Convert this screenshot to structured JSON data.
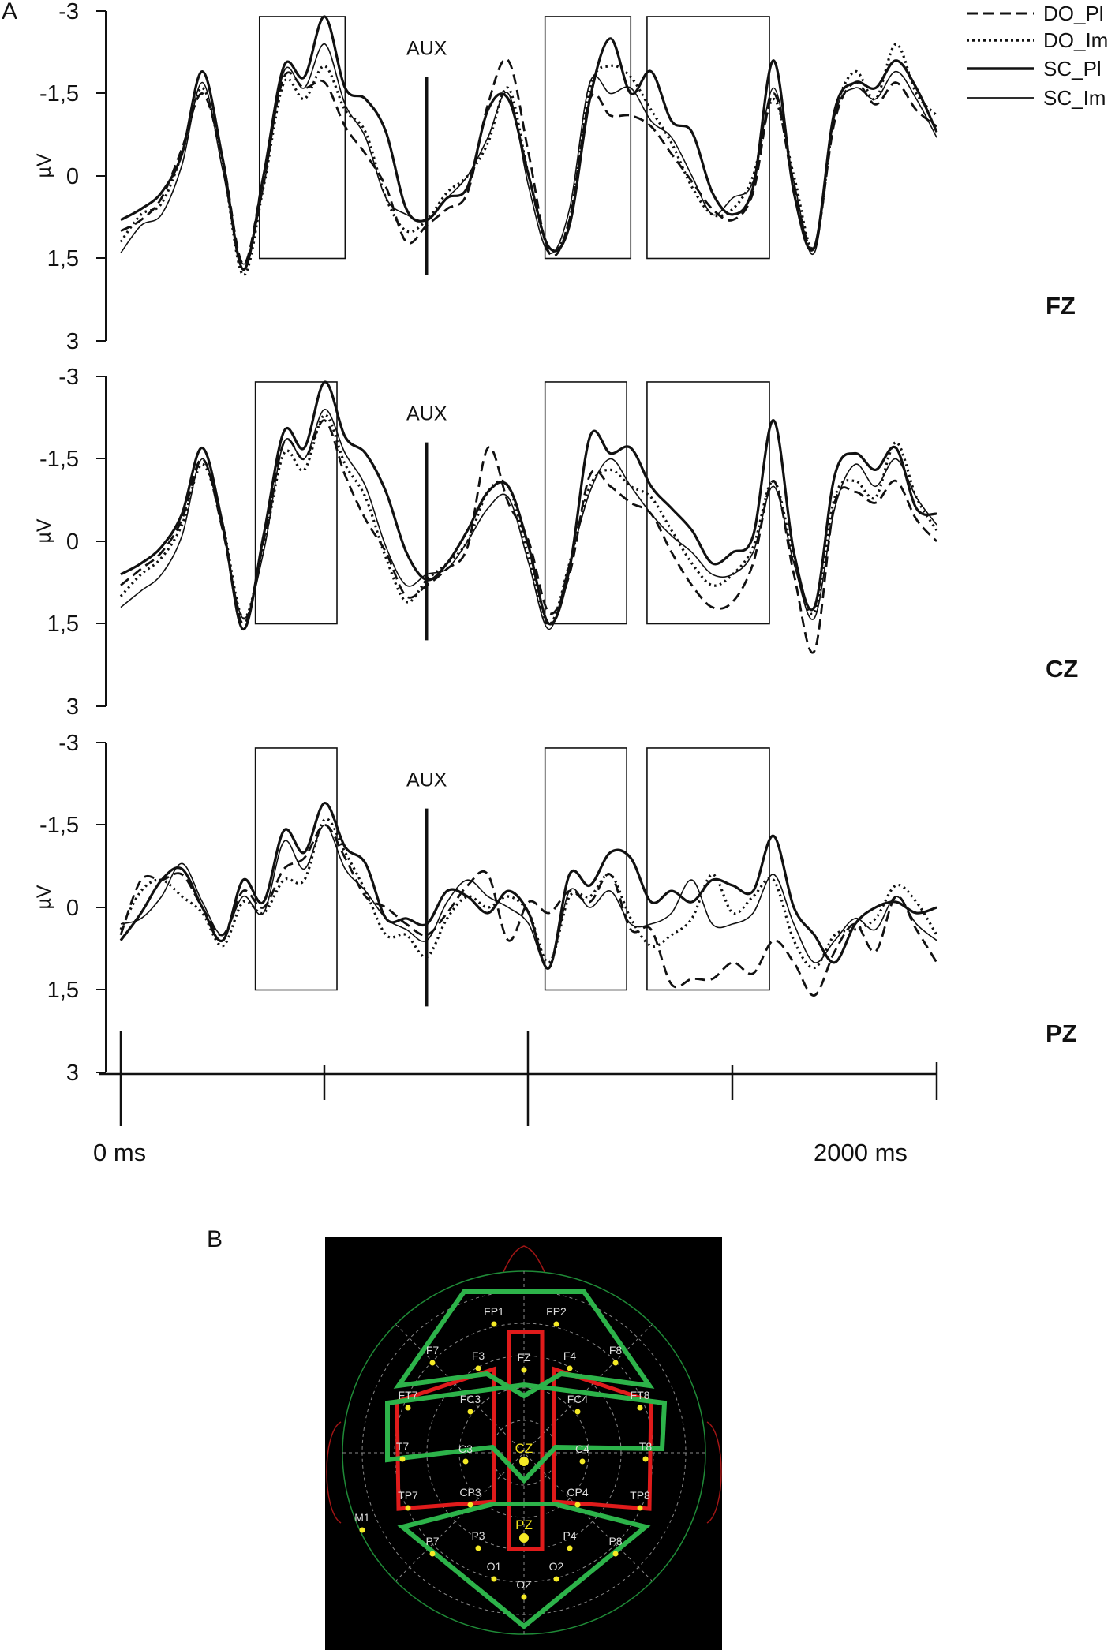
{
  "panel_a_label": "A",
  "panel_b_label": "B",
  "chart_data": [
    {
      "type": "line",
      "electrode": "FZ",
      "ylabel": "µV",
      "yticks": [
        "-3",
        "-1,5",
        "0",
        "1,5",
        "3"
      ],
      "ylim": [
        3,
        -3
      ],
      "y_inverted": true,
      "xlim": [
        0,
        2000
      ],
      "aux_label": "AUX",
      "aux_time_ms": 750,
      "windows_ms": [
        [
          340,
          550
        ],
        [
          1040,
          1250
        ],
        [
          1290,
          1590
        ]
      ],
      "x_ms": [
        0,
        50,
        100,
        150,
        200,
        250,
        300,
        350,
        400,
        450,
        500,
        550,
        600,
        650,
        700,
        750,
        800,
        850,
        900,
        950,
        1000,
        1050,
        1100,
        1150,
        1200,
        1250,
        1300,
        1350,
        1400,
        1450,
        1500,
        1550,
        1600,
        1650,
        1700,
        1750,
        1800,
        1850,
        1900,
        1950,
        2000
      ],
      "series": [
        {
          "name": "DO_Pl",
          "values": [
            1.0,
            0.8,
            0.4,
            -0.5,
            -1.5,
            -0.3,
            1.6,
            0.0,
            -1.8,
            -1.6,
            -1.7,
            -0.9,
            -0.4,
            0.2,
            1.2,
            0.9,
            0.6,
            0.3,
            -1.3,
            -2.1,
            -0.4,
            1.4,
            0.8,
            -1.4,
            -1.1,
            -1.1,
            -0.9,
            -0.4,
            0.1,
            0.6,
            0.8,
            0.3,
            -1.5,
            0.2,
            1.3,
            -1.0,
            -1.7,
            -1.3,
            -1.7,
            -1.2,
            -0.9
          ]
        },
        {
          "name": "DO_Im",
          "values": [
            1.2,
            0.7,
            0.5,
            -0.4,
            -1.6,
            -0.2,
            1.8,
            0.2,
            -1.7,
            -1.4,
            -2.0,
            -1.2,
            -0.8,
            0.4,
            1.0,
            0.8,
            0.3,
            0.0,
            -0.6,
            -1.6,
            0.0,
            1.3,
            0.8,
            -1.6,
            -2.0,
            -1.8,
            -1.2,
            -0.6,
            0.2,
            0.7,
            0.6,
            0.0,
            -1.4,
            0.0,
            1.3,
            -1.1,
            -1.9,
            -1.4,
            -2.4,
            -1.5,
            -1.1
          ]
        },
        {
          "name": "SC_Pl",
          "values": [
            0.8,
            0.6,
            0.3,
            -0.4,
            -1.9,
            -0.3,
            1.7,
            0.0,
            -2.0,
            -1.8,
            -2.9,
            -1.6,
            -1.4,
            -0.8,
            0.6,
            0.8,
            0.4,
            0.2,
            -1.2,
            -1.4,
            0.0,
            1.3,
            0.9,
            -1.4,
            -2.5,
            -1.5,
            -1.9,
            -1.0,
            -0.8,
            0.3,
            0.7,
            0.2,
            -2.1,
            0.3,
            1.3,
            -1.2,
            -1.7,
            -1.6,
            -2.1,
            -1.6,
            -0.8
          ]
        },
        {
          "name": "SC_Im",
          "values": [
            1.4,
            0.9,
            0.7,
            -0.2,
            -1.7,
            -0.1,
            1.6,
            0.2,
            -1.9,
            -1.6,
            -2.4,
            -1.3,
            -0.7,
            0.4,
            0.7,
            0.8,
            0.4,
            0.0,
            -0.7,
            -1.5,
            0.2,
            1.4,
            0.6,
            -1.7,
            -1.5,
            -1.6,
            -1.0,
            -0.7,
            0.0,
            0.7,
            0.4,
            0.1,
            -1.6,
            0.1,
            1.4,
            -1.1,
            -1.6,
            -1.4,
            -1.9,
            -1.4,
            -0.7
          ]
        }
      ]
    },
    {
      "type": "line",
      "electrode": "CZ",
      "ylabel": "µV",
      "yticks": [
        "-3",
        "-1,5",
        "0",
        "1,5",
        "3"
      ],
      "ylim": [
        3,
        -3
      ],
      "y_inverted": true,
      "xlim": [
        0,
        2000
      ],
      "aux_label": "AUX",
      "aux_time_ms": 750,
      "windows_ms": [
        [
          330,
          530
        ],
        [
          1040,
          1240
        ],
        [
          1290,
          1590
        ]
      ],
      "x_ms": [
        0,
        50,
        100,
        150,
        200,
        250,
        300,
        350,
        400,
        450,
        500,
        550,
        600,
        650,
        700,
        750,
        800,
        850,
        900,
        950,
        1000,
        1050,
        1100,
        1150,
        1200,
        1250,
        1300,
        1350,
        1400,
        1450,
        1500,
        1550,
        1600,
        1650,
        1700,
        1750,
        1800,
        1850,
        1900,
        1950,
        2000
      ],
      "series": [
        {
          "name": "DO_Pl",
          "values": [
            0.8,
            0.5,
            0.2,
            -0.4,
            -1.5,
            -0.2,
            1.5,
            0.0,
            -1.8,
            -1.5,
            -2.2,
            -1.2,
            -0.4,
            0.2,
            1.0,
            0.8,
            0.5,
            0.1,
            -1.7,
            -0.7,
            0.0,
            1.3,
            0.6,
            -1.2,
            -1.0,
            -0.7,
            -0.5,
            0.2,
            0.8,
            1.2,
            1.1,
            0.4,
            -1.1,
            0.6,
            2.0,
            -0.7,
            -0.9,
            -0.7,
            -1.1,
            -0.4,
            0.0
          ]
        },
        {
          "name": "DO_Im",
          "values": [
            1.0,
            0.6,
            0.3,
            -0.3,
            -1.4,
            -0.3,
            1.4,
            0.1,
            -1.6,
            -1.3,
            -2.3,
            -1.4,
            -0.8,
            0.3,
            1.1,
            0.7,
            0.4,
            0.0,
            -0.9,
            -1.0,
            0.3,
            1.5,
            0.4,
            -1.0,
            -1.3,
            -1.0,
            -0.8,
            -0.2,
            0.4,
            0.8,
            0.6,
            0.1,
            -1.1,
            0.3,
            1.3,
            -0.8,
            -1.1,
            -0.8,
            -1.8,
            -0.8,
            -0.2
          ]
        },
        {
          "name": "SC_Pl",
          "values": [
            0.6,
            0.4,
            0.1,
            -0.5,
            -1.7,
            -0.3,
            1.6,
            -0.1,
            -2.0,
            -1.7,
            -2.9,
            -1.9,
            -1.6,
            -0.9,
            0.2,
            0.7,
            0.4,
            -0.2,
            -0.9,
            -1.0,
            0.1,
            1.5,
            0.5,
            -1.9,
            -1.6,
            -1.7,
            -1.0,
            -0.6,
            -0.2,
            0.4,
            0.2,
            -0.1,
            -2.2,
            0.2,
            1.2,
            -1.2,
            -1.6,
            -1.3,
            -1.7,
            -0.6,
            -0.5
          ]
        },
        {
          "name": "SC_Im",
          "values": [
            1.2,
            0.9,
            0.6,
            -0.1,
            -1.5,
            -0.2,
            1.4,
            0.2,
            -1.8,
            -1.5,
            -2.4,
            -1.6,
            -1.0,
            0.1,
            0.8,
            0.6,
            0.5,
            0.0,
            -0.6,
            -0.8,
            0.4,
            1.6,
            0.4,
            -0.9,
            -1.5,
            -1.0,
            -0.5,
            -0.1,
            0.2,
            0.6,
            0.6,
            0.2,
            -1.0,
            0.4,
            1.4,
            -0.6,
            -1.4,
            -1.0,
            -1.5,
            -0.8,
            -0.3
          ]
        }
      ]
    },
    {
      "type": "line",
      "electrode": "PZ",
      "ylabel": "µV",
      "yticks": [
        "-3",
        "-1,5",
        "0",
        "1,5",
        "3"
      ],
      "ylim": [
        3,
        -3
      ],
      "y_inverted": true,
      "xlim": [
        0,
        2000
      ],
      "aux_label": "AUX",
      "aux_time_ms": 750,
      "windows_ms": [
        [
          330,
          530
        ],
        [
          1040,
          1240
        ],
        [
          1290,
          1590
        ]
      ],
      "x_ms": [
        0,
        50,
        100,
        150,
        200,
        250,
        300,
        350,
        400,
        450,
        500,
        550,
        600,
        650,
        700,
        750,
        800,
        850,
        900,
        950,
        1000,
        1050,
        1100,
        1150,
        1200,
        1250,
        1300,
        1350,
        1400,
        1450,
        1500,
        1550,
        1600,
        1650,
        1700,
        1750,
        1800,
        1850,
        1900,
        1950,
        2000
      ],
      "series": [
        {
          "name": "DO_Pl",
          "values": [
            0.5,
            -0.5,
            -0.5,
            -0.6,
            0.0,
            0.5,
            -0.3,
            0.0,
            -0.7,
            -0.9,
            -1.5,
            -0.9,
            -0.2,
            0.0,
            0.3,
            0.5,
            0.1,
            -0.4,
            -0.6,
            0.6,
            -0.1,
            0.1,
            -0.3,
            -0.1,
            -0.6,
            0.4,
            0.4,
            1.4,
            1.3,
            1.3,
            1.0,
            1.2,
            0.6,
            1.0,
            1.6,
            0.8,
            0.3,
            0.8,
            -0.2,
            0.4,
            1.0
          ]
        },
        {
          "name": "DO_Im",
          "values": [
            0.4,
            -0.3,
            -0.5,
            -0.2,
            0.1,
            0.7,
            -0.1,
            0.1,
            -0.5,
            -0.5,
            -1.6,
            -1.0,
            -0.3,
            0.5,
            0.5,
            0.9,
            0.2,
            -0.2,
            0.0,
            -0.2,
            0.1,
            1.0,
            -0.2,
            -0.2,
            -0.6,
            0.2,
            0.7,
            0.5,
            0.2,
            -0.6,
            0.1,
            -0.2,
            -0.5,
            0.6,
            1.1,
            0.5,
            0.4,
            0.2,
            -0.4,
            -0.1,
            0.5
          ]
        },
        {
          "name": "SC_Pl",
          "values": [
            0.6,
            0.1,
            -0.5,
            -0.7,
            0.0,
            0.6,
            -0.5,
            -0.1,
            -1.4,
            -1.0,
            -1.9,
            -1.1,
            -0.8,
            0.2,
            0.2,
            0.3,
            -0.3,
            -0.2,
            0.1,
            -0.3,
            0.1,
            1.1,
            -0.6,
            -0.4,
            -1.0,
            -0.9,
            -0.1,
            -0.3,
            -0.1,
            -0.5,
            -0.4,
            -0.3,
            -1.3,
            0.0,
            0.5,
            1.0,
            0.3,
            0.0,
            -0.1,
            0.1,
            0.0
          ]
        },
        {
          "name": "SC_Im",
          "values": [
            0.3,
            0.2,
            -0.2,
            -0.8,
            -0.1,
            0.5,
            -0.2,
            0.1,
            -1.2,
            -0.7,
            -1.5,
            -0.7,
            -0.3,
            0.2,
            0.4,
            0.6,
            -0.1,
            -0.5,
            -0.2,
            0.0,
            0.3,
            1.1,
            -0.3,
            0.0,
            -0.3,
            0.3,
            0.3,
            0.1,
            -0.5,
            0.3,
            0.3,
            0.1,
            -0.6,
            0.3,
            1.0,
            0.6,
            0.2,
            0.4,
            -0.2,
            0.3,
            0.6
          ]
        }
      ]
    }
  ],
  "time_axis": {
    "start_label": "0 ms",
    "end_label": "2000 ms",
    "major_ticks_ms": [
      0,
      1000,
      2000
    ],
    "minor_ticks_ms": [
      500,
      1500
    ]
  },
  "legend": [
    {
      "name": "DO_Pl",
      "style": "dashed",
      "width": "thick"
    },
    {
      "name": "DO_Im",
      "style": "dotted",
      "width": "thick"
    },
    {
      "name": "SC_Pl",
      "style": "solid",
      "width": "thick"
    },
    {
      "name": "SC_Im",
      "style": "solid",
      "width": "thin"
    }
  ],
  "electrode_map": {
    "background_color": "#000000",
    "roi_colors": {
      "frontal_central_parietal": "#2db34a",
      "lateral_midline": "#e01b1b"
    },
    "electrode_color": "#f5ea26",
    "highlight_color": "#f2e41b",
    "electrodes": [
      {
        "label": "FP1"
      },
      {
        "label": "FP2"
      },
      {
        "label": "F7"
      },
      {
        "label": "F3"
      },
      {
        "label": "FZ"
      },
      {
        "label": "F4"
      },
      {
        "label": "F8"
      },
      {
        "label": "FT7"
      },
      {
        "label": "FC3"
      },
      {
        "label": "FC4"
      },
      {
        "label": "FT8"
      },
      {
        "label": "T7"
      },
      {
        "label": "C3"
      },
      {
        "label": "CZ",
        "highlight": true
      },
      {
        "label": "C4"
      },
      {
        "label": "T8"
      },
      {
        "label": "TP7"
      },
      {
        "label": "CP3"
      },
      {
        "label": "CP4"
      },
      {
        "label": "TP8"
      },
      {
        "label": "M1"
      },
      {
        "label": "P7"
      },
      {
        "label": "P3"
      },
      {
        "label": "PZ",
        "highlight": true
      },
      {
        "label": "P4"
      },
      {
        "label": "P8"
      },
      {
        "label": "O1"
      },
      {
        "label": "OZ"
      },
      {
        "label": "O2"
      }
    ]
  }
}
